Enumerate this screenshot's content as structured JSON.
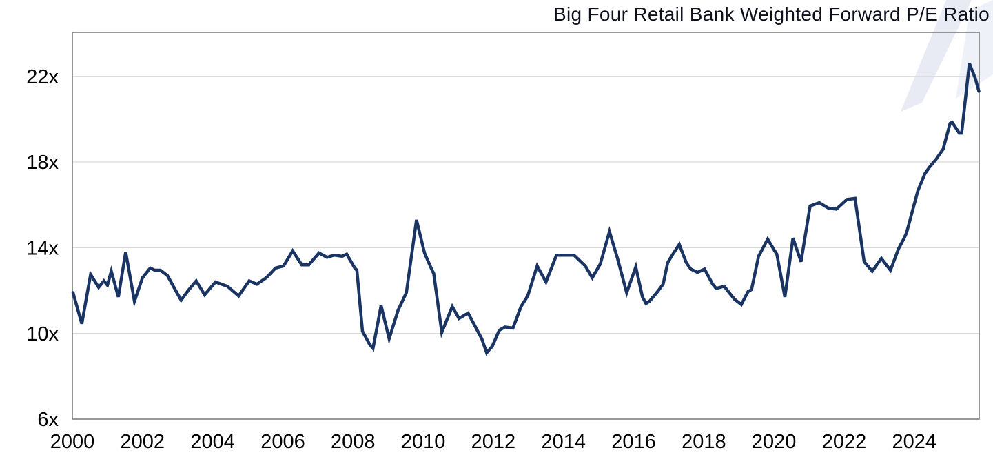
{
  "header": {
    "title": "Big Four Retail Bank Weighted Forward P/E Ratio"
  },
  "chart_data": {
    "type": "line",
    "title": "Big Four Retail Bank Weighted Forward P/E Ratio",
    "xlabel": "",
    "ylabel": "",
    "xlim": [
      2000,
      2025.85
    ],
    "ylim": [
      6,
      24.05
    ],
    "x_ticks": [
      2000,
      2002,
      2004,
      2006,
      2008,
      2010,
      2012,
      2014,
      2016,
      2018,
      2020,
      2022,
      2024
    ],
    "y_ticks": [
      {
        "value": 6,
        "label": "6x"
      },
      {
        "value": 10,
        "label": "10x"
      },
      {
        "value": 14,
        "label": "14x"
      },
      {
        "value": 18,
        "label": "18x"
      },
      {
        "value": 22,
        "label": "22x"
      }
    ],
    "grid": {
      "y_values": [
        10,
        14,
        18,
        22
      ],
      "color": "#d9d9d9",
      "visible": true
    },
    "plot_border_color": "#7f7f7f",
    "legend": {
      "visible": false
    },
    "watermark": {
      "band_color": "#e8ebf3",
      "corner_color": "#eef1f8"
    },
    "series": [
      {
        "name": "Big Four Retail Bank Weighted Forward P/E Ratio",
        "color": "#1a3463",
        "stroke_width": 4.5,
        "points": [
          [
            2000.02,
            11.9
          ],
          [
            2000.27,
            10.45
          ],
          [
            2000.52,
            12.75
          ],
          [
            2000.75,
            12.15
          ],
          [
            2000.9,
            12.45
          ],
          [
            2001.0,
            12.25
          ],
          [
            2001.11,
            12.9
          ],
          [
            2001.31,
            11.7
          ],
          [
            2001.52,
            13.8
          ],
          [
            2001.77,
            11.5
          ],
          [
            2002.0,
            12.6
          ],
          [
            2002.22,
            13.05
          ],
          [
            2002.35,
            12.95
          ],
          [
            2002.51,
            12.95
          ],
          [
            2002.71,
            12.7
          ],
          [
            2002.98,
            11.9
          ],
          [
            2003.1,
            11.55
          ],
          [
            2003.3,
            12.0
          ],
          [
            2003.53,
            12.45
          ],
          [
            2003.77,
            11.8
          ],
          [
            2004.08,
            12.4
          ],
          [
            2004.42,
            12.2
          ],
          [
            2004.74,
            11.75
          ],
          [
            2005.04,
            12.45
          ],
          [
            2005.26,
            12.3
          ],
          [
            2005.53,
            12.6
          ],
          [
            2005.79,
            13.05
          ],
          [
            2006.02,
            13.15
          ],
          [
            2006.28,
            13.85
          ],
          [
            2006.54,
            13.2
          ],
          [
            2006.74,
            13.2
          ],
          [
            2007.03,
            13.75
          ],
          [
            2007.26,
            13.55
          ],
          [
            2007.46,
            13.65
          ],
          [
            2007.69,
            13.6
          ],
          [
            2007.82,
            13.7
          ],
          [
            2008.05,
            13.05
          ],
          [
            2008.11,
            12.95
          ],
          [
            2008.27,
            10.1
          ],
          [
            2008.47,
            9.5
          ],
          [
            2008.57,
            9.3
          ],
          [
            2008.8,
            11.3
          ],
          [
            2009.03,
            9.75
          ],
          [
            2009.29,
            11.1
          ],
          [
            2009.52,
            11.9
          ],
          [
            2009.81,
            15.3
          ],
          [
            2010.04,
            13.75
          ],
          [
            2010.24,
            13.0
          ],
          [
            2010.3,
            12.8
          ],
          [
            2010.53,
            10.05
          ],
          [
            2010.83,
            11.25
          ],
          [
            2011.02,
            10.7
          ],
          [
            2011.28,
            10.95
          ],
          [
            2011.67,
            9.75
          ],
          [
            2011.81,
            9.1
          ],
          [
            2011.97,
            9.4
          ],
          [
            2012.17,
            10.15
          ],
          [
            2012.33,
            10.3
          ],
          [
            2012.56,
            10.25
          ],
          [
            2012.79,
            11.25
          ],
          [
            2012.98,
            11.75
          ],
          [
            2013.25,
            13.15
          ],
          [
            2013.5,
            12.4
          ],
          [
            2013.8,
            13.65
          ],
          [
            2014.05,
            13.65
          ],
          [
            2014.3,
            13.65
          ],
          [
            2014.62,
            13.15
          ],
          [
            2014.82,
            12.6
          ],
          [
            2015.05,
            13.25
          ],
          [
            2015.31,
            14.75
          ],
          [
            2015.54,
            13.5
          ],
          [
            2015.8,
            11.9
          ],
          [
            2016.06,
            13.1
          ],
          [
            2016.25,
            11.7
          ],
          [
            2016.35,
            11.4
          ],
          [
            2016.45,
            11.5
          ],
          [
            2016.68,
            11.95
          ],
          [
            2016.84,
            12.3
          ],
          [
            2016.97,
            13.3
          ],
          [
            2017.1,
            13.65
          ],
          [
            2017.3,
            14.15
          ],
          [
            2017.5,
            13.3
          ],
          [
            2017.63,
            13.0
          ],
          [
            2017.82,
            12.85
          ],
          [
            2018.02,
            13.0
          ],
          [
            2018.25,
            12.3
          ],
          [
            2018.35,
            12.1
          ],
          [
            2018.58,
            12.2
          ],
          [
            2018.87,
            11.6
          ],
          [
            2019.07,
            11.35
          ],
          [
            2019.26,
            11.95
          ],
          [
            2019.36,
            12.05
          ],
          [
            2019.56,
            13.6
          ],
          [
            2019.82,
            14.4
          ],
          [
            2020.02,
            13.85
          ],
          [
            2020.08,
            13.7
          ],
          [
            2020.31,
            11.7
          ],
          [
            2020.54,
            14.45
          ],
          [
            2020.77,
            13.35
          ],
          [
            2021.03,
            15.95
          ],
          [
            2021.29,
            16.1
          ],
          [
            2021.55,
            15.85
          ],
          [
            2021.78,
            15.8
          ],
          [
            2022.08,
            16.25
          ],
          [
            2022.31,
            16.3
          ],
          [
            2022.57,
            13.35
          ],
          [
            2022.8,
            12.9
          ],
          [
            2023.06,
            13.5
          ],
          [
            2023.32,
            12.95
          ],
          [
            2023.55,
            13.95
          ],
          [
            2023.71,
            14.45
          ],
          [
            2023.78,
            14.7
          ],
          [
            2024.1,
            16.65
          ],
          [
            2024.3,
            17.45
          ],
          [
            2024.43,
            17.75
          ],
          [
            2024.63,
            18.15
          ],
          [
            2024.82,
            18.6
          ],
          [
            2025.02,
            19.8
          ],
          [
            2025.08,
            19.85
          ],
          [
            2025.28,
            19.35
          ],
          [
            2025.35,
            19.35
          ],
          [
            2025.57,
            22.6
          ],
          [
            2025.74,
            21.9
          ],
          [
            2025.84,
            21.3
          ]
        ]
      }
    ]
  }
}
